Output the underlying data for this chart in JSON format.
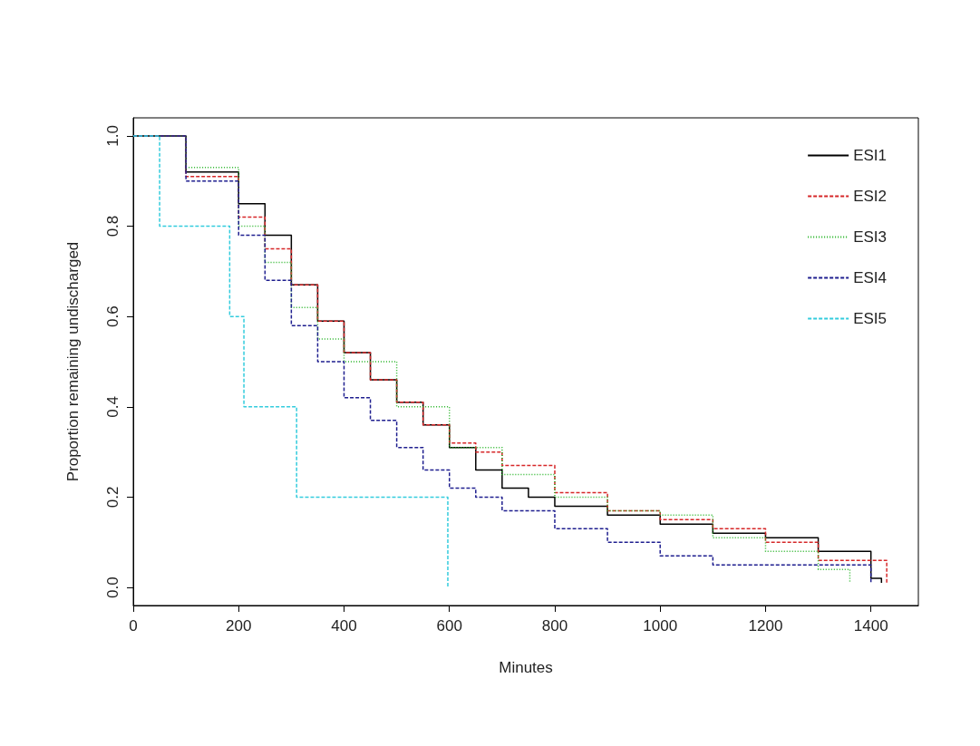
{
  "chart_data": {
    "type": "step",
    "xlabel": "Minutes",
    "ylabel": "Proportion remaining undischarged",
    "xlim": [
      0,
      1490
    ],
    "xticks": [
      0,
      200,
      400,
      600,
      800,
      1000,
      1200,
      1400
    ],
    "ylim": [
      -0.04,
      1.04
    ],
    "yticks": [
      {
        "value": 0,
        "label": "0.0"
      },
      {
        "value": 0.2,
        "label": "0.2"
      },
      {
        "value": 0.4,
        "label": "0.4"
      },
      {
        "value": 0.6,
        "label": "0.6"
      },
      {
        "value": 0.8,
        "label": "0.8"
      },
      {
        "value": 1,
        "label": "1.0"
      }
    ],
    "grid": false,
    "legend": "right",
    "series": [
      {
        "name": "ESI1",
        "color": "#000000",
        "line_style": "solid",
        "x": [
          0,
          100,
          200,
          250,
          300,
          350,
          400,
          450,
          500,
          550,
          600,
          650,
          700,
          750,
          800,
          900,
          1000,
          1100,
          1200,
          1300,
          1400,
          1420
        ],
        "values": [
          1,
          0.92,
          0.85,
          0.78,
          0.67,
          0.59,
          0.52,
          0.46,
          0.41,
          0.36,
          0.31,
          0.26,
          0.22,
          0.2,
          0.18,
          0.16,
          0.14,
          0.12,
          0.11,
          0.08,
          0.02,
          0.01
        ]
      },
      {
        "name": "ESI2",
        "color": "#d62728",
        "line_style": "dashed",
        "x": [
          0,
          100,
          200,
          250,
          300,
          350,
          400,
          450,
          500,
          550,
          600,
          650,
          700,
          800,
          900,
          1000,
          1100,
          1200,
          1300,
          1430
        ],
        "values": [
          1,
          0.91,
          0.82,
          0.75,
          0.67,
          0.59,
          0.52,
          0.46,
          0.41,
          0.36,
          0.32,
          0.3,
          0.27,
          0.21,
          0.17,
          0.15,
          0.13,
          0.1,
          0.06,
          0.01
        ]
      },
      {
        "name": "ESI3",
        "color": "#22b322",
        "line_style": "dotted",
        "x": [
          0,
          100,
          200,
          250,
          300,
          350,
          400,
          500,
          600,
          700,
          800,
          900,
          1000,
          1100,
          1200,
          1300,
          1360
        ],
        "values": [
          1,
          0.93,
          0.8,
          0.72,
          0.62,
          0.55,
          0.5,
          0.4,
          0.31,
          0.25,
          0.2,
          0.17,
          0.16,
          0.11,
          0.08,
          0.04,
          0.01
        ]
      },
      {
        "name": "ESI4",
        "color": "#1f1f8f",
        "line_style": "dashed",
        "x": [
          0,
          100,
          200,
          250,
          300,
          350,
          400,
          450,
          500,
          550,
          600,
          650,
          700,
          800,
          900,
          1000,
          1100,
          1300,
          1400
        ],
        "values": [
          1,
          0.9,
          0.78,
          0.68,
          0.58,
          0.5,
          0.42,
          0.37,
          0.31,
          0.26,
          0.22,
          0.2,
          0.17,
          0.13,
          0.1,
          0.07,
          0.05,
          0.05,
          0.01
        ]
      },
      {
        "name": "ESI5",
        "color": "#33ccdd",
        "line_style": "dashed",
        "x": [
          0,
          50,
          183,
          210,
          310,
          597
        ],
        "values": [
          1,
          0.8,
          0.6,
          0.4,
          0.2,
          0
        ]
      }
    ]
  }
}
